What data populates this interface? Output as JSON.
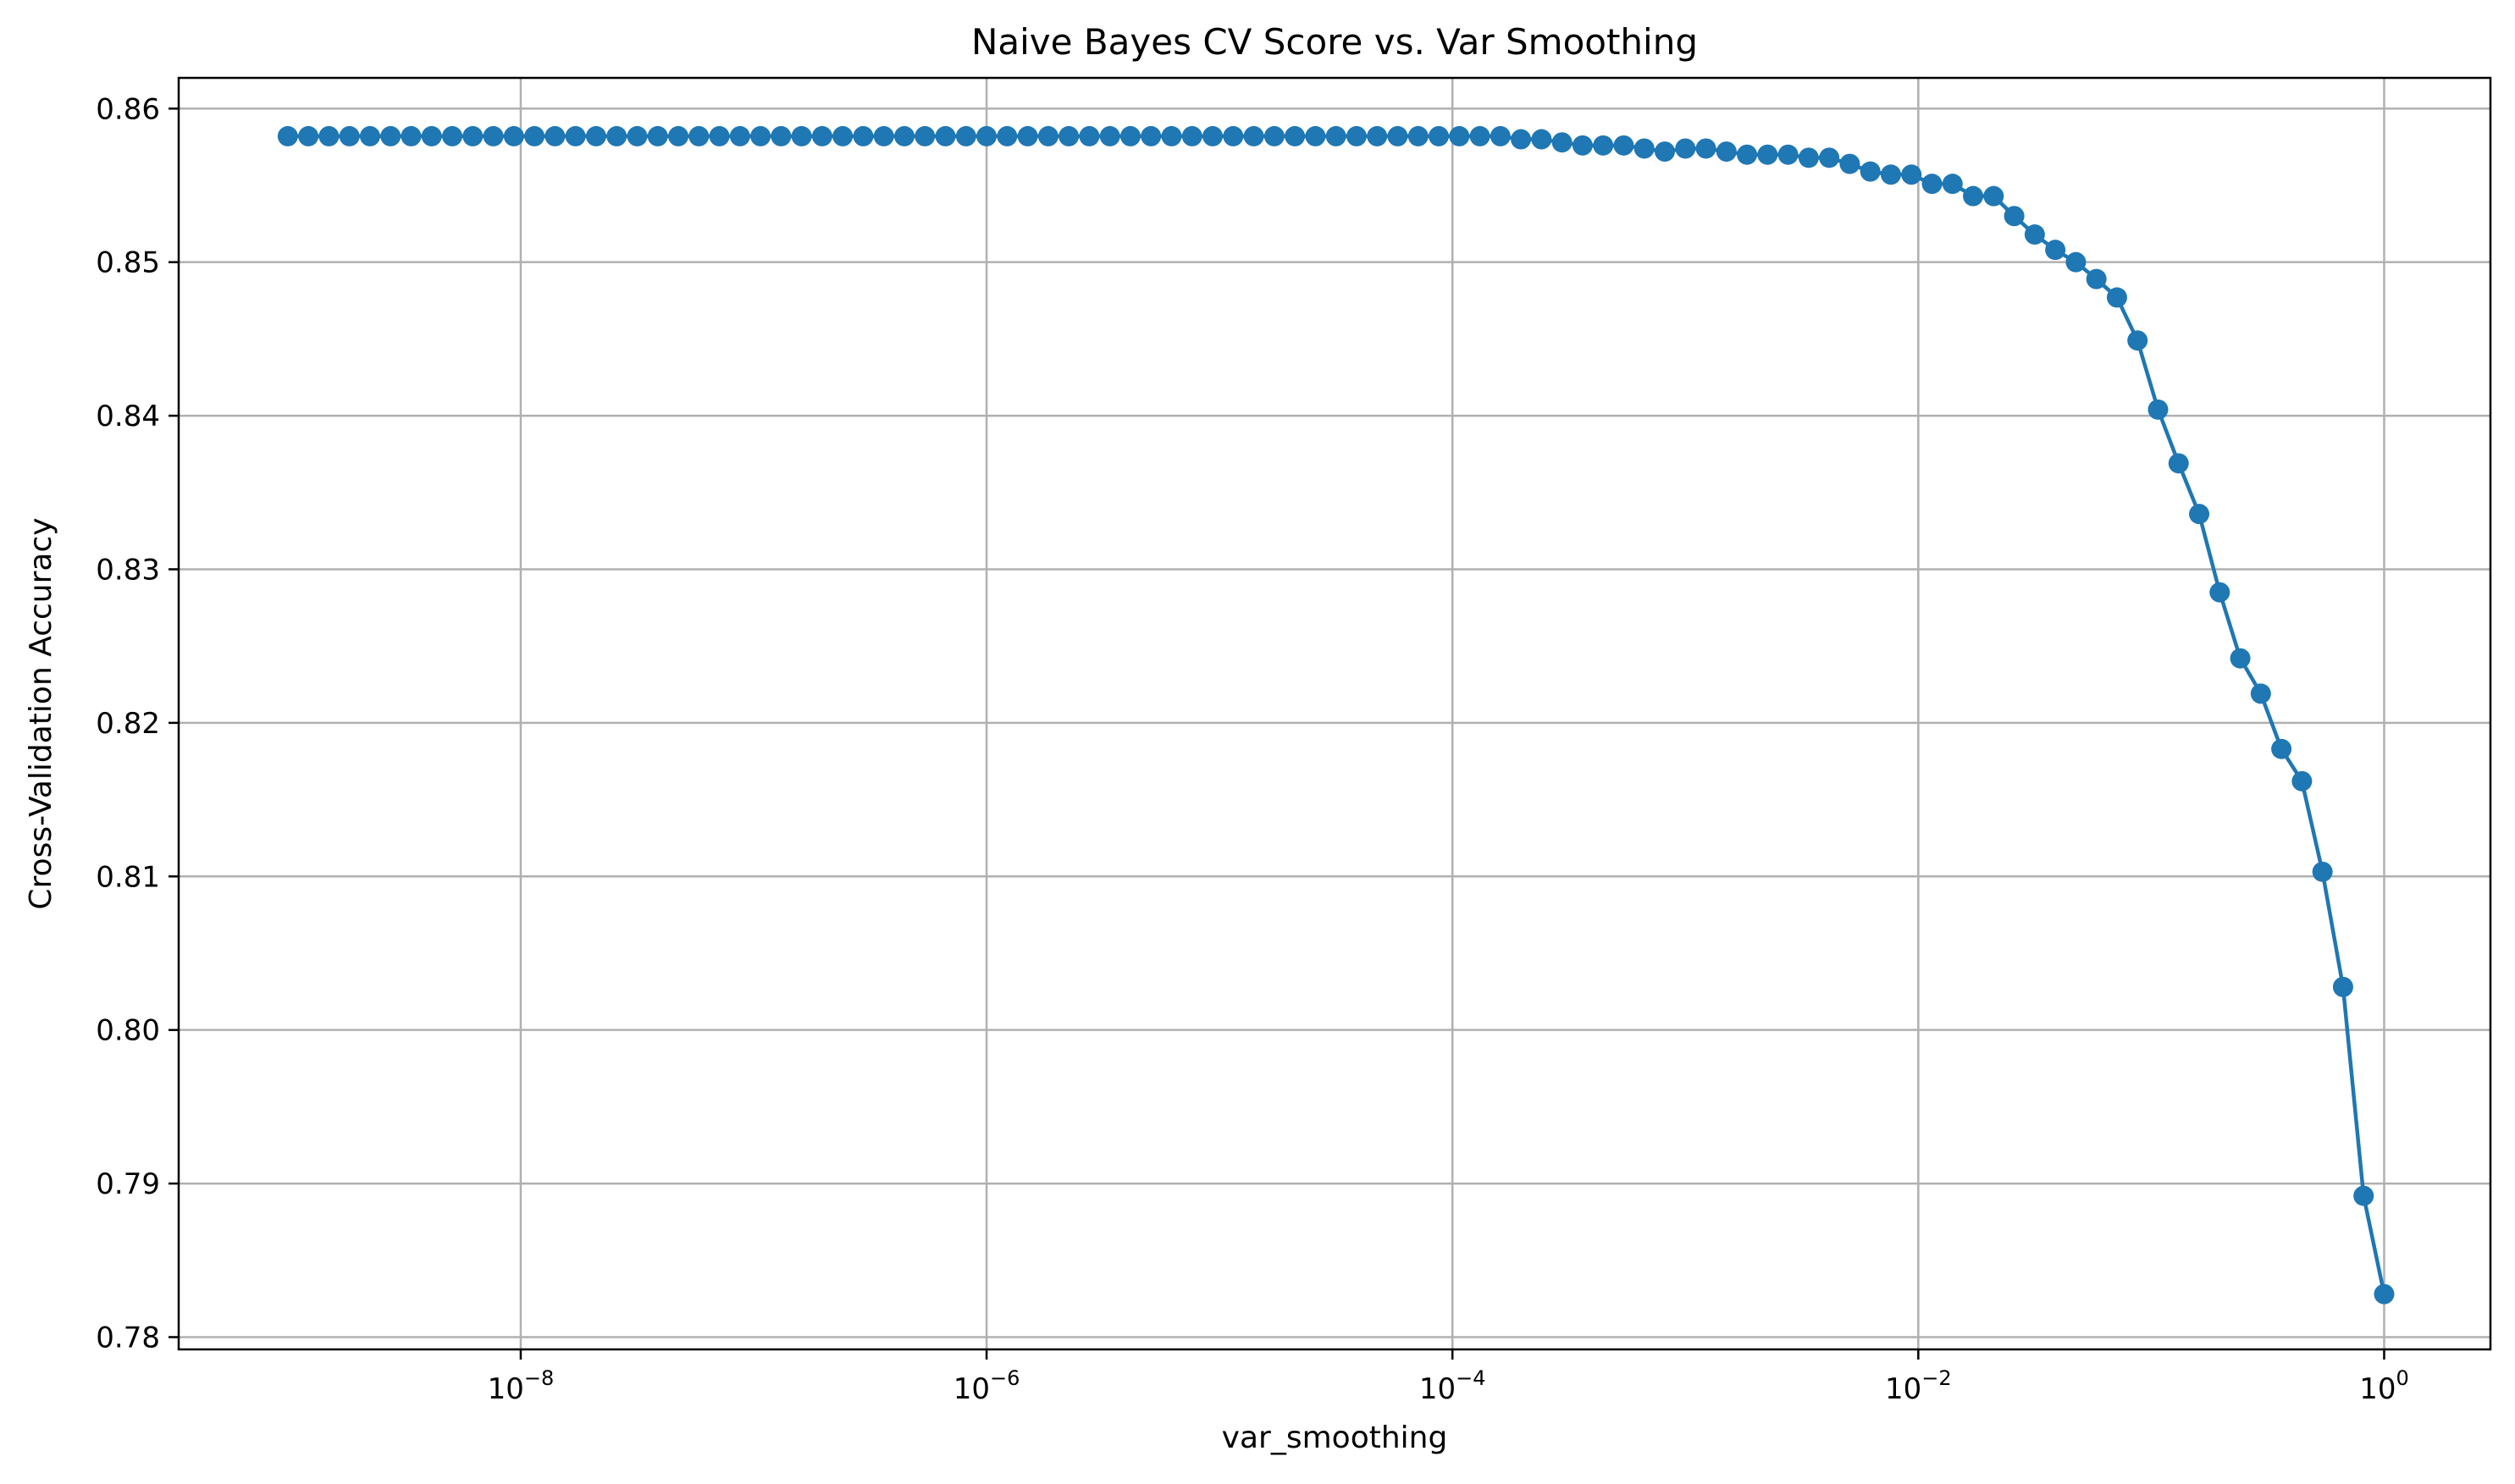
{
  "chart_data": {
    "type": "line",
    "title": "Naive Bayes CV Score vs. Var Smoothing",
    "xlabel": "var_smoothing",
    "ylabel": "Cross-Validation Accuracy",
    "xscale": "log",
    "xlim": [
      3.4e-10,
      2.86
    ],
    "ylim": [
      0.7792,
      0.862
    ],
    "grid": true,
    "color": "#1f77b4",
    "marker": "circle",
    "x_ticks": [
      {
        "value": 1e-08,
        "base": "10",
        "exp": "−8"
      },
      {
        "value": 1e-06,
        "base": "10",
        "exp": "−6"
      },
      {
        "value": 0.0001,
        "base": "10",
        "exp": "−4"
      },
      {
        "value": 0.01,
        "base": "10",
        "exp": "−2"
      },
      {
        "value": 1,
        "base": "10",
        "exp": "0"
      }
    ],
    "y_ticks": [
      0.78,
      0.79,
      0.8,
      0.81,
      0.82,
      0.83,
      0.84,
      0.85,
      0.86
    ],
    "y_tick_labels": [
      "0.78",
      "0.79",
      "0.80",
      "0.81",
      "0.82",
      "0.83",
      "0.84",
      "0.85",
      "0.86"
    ],
    "x_log10_start": -9,
    "x_log10_end": 0,
    "y": [
      0.8582,
      0.8582,
      0.8582,
      0.8582,
      0.8582,
      0.8582,
      0.8582,
      0.8582,
      0.8582,
      0.8582,
      0.8582,
      0.8582,
      0.8582,
      0.8582,
      0.8582,
      0.8582,
      0.8582,
      0.8582,
      0.8582,
      0.8582,
      0.8582,
      0.8582,
      0.8582,
      0.8582,
      0.8582,
      0.8582,
      0.8582,
      0.8582,
      0.8582,
      0.8582,
      0.8582,
      0.8582,
      0.8582,
      0.8582,
      0.8582,
      0.8582,
      0.8582,
      0.8582,
      0.8582,
      0.8582,
      0.8582,
      0.8582,
      0.8582,
      0.8582,
      0.8582,
      0.8582,
      0.8582,
      0.8582,
      0.8582,
      0.8582,
      0.8582,
      0.8582,
      0.8582,
      0.8582,
      0.8582,
      0.8582,
      0.8582,
      0.8582,
      0.8582,
      0.8582,
      0.858,
      0.858,
      0.8578,
      0.8576,
      0.8576,
      0.8576,
      0.8574,
      0.8572,
      0.8574,
      0.8574,
      0.8572,
      0.857,
      0.857,
      0.857,
      0.8568,
      0.8568,
      0.8564,
      0.8559,
      0.8557,
      0.8557,
      0.8551,
      0.8551,
      0.8543,
      0.8543,
      0.853,
      0.8518,
      0.8508,
      0.85,
      0.8489,
      0.8477,
      0.8449,
      0.8404,
      0.8369,
      0.8336,
      0.8285,
      0.8242,
      0.8219,
      0.8183,
      0.8162,
      0.8103,
      0.8028,
      0.7892,
      0.7828
    ]
  }
}
